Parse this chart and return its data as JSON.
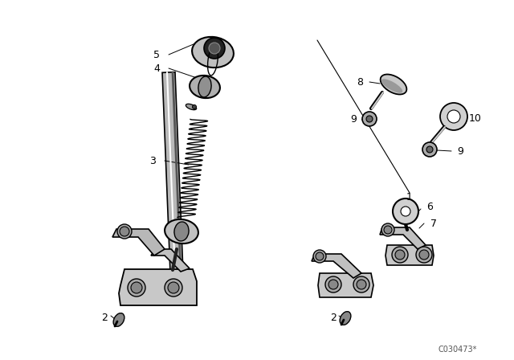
{
  "bg_color": "#ffffff",
  "watermark": "C030473*",
  "gray1": "#cccccc",
  "gray2": "#aaaaaa",
  "gray3": "#888888",
  "black": "#000000"
}
